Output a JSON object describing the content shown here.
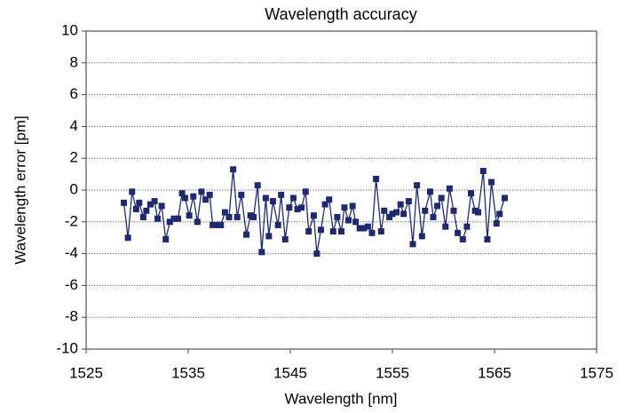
{
  "chart_data": {
    "type": "line",
    "title": "Wavelength accuracy",
    "xlabel": "Wavelength [nm]",
    "ylabel": "Wavelength error [pm]",
    "color": "#1f2a6e",
    "grid": true,
    "markers": "square",
    "x": [
      1528.7,
      1529.1,
      1529.5,
      1529.9,
      1530.2,
      1530.6,
      1530.9,
      1531.3,
      1531.7,
      1532.0,
      1532.4,
      1532.8,
      1533.2,
      1533.6,
      1534.0,
      1534.4,
      1534.7,
      1535.1,
      1535.5,
      1535.9,
      1536.3,
      1536.7,
      1537.1,
      1537.4,
      1537.9,
      1538.2,
      1538.6,
      1539.0,
      1539.4,
      1539.8,
      1540.2,
      1540.7,
      1541.1,
      1541.4,
      1541.8,
      1542.2,
      1542.6,
      1542.9,
      1543.3,
      1543.8,
      1544.1,
      1544.5,
      1544.9,
      1545.3,
      1545.7,
      1546.1,
      1546.5,
      1546.8,
      1547.3,
      1547.6,
      1548.0,
      1548.4,
      1548.8,
      1549.2,
      1549.6,
      1550.0,
      1550.3,
      1550.7,
      1551.1,
      1551.4,
      1551.8,
      1552.2,
      1552.6,
      1553.0,
      1553.4,
      1553.9,
      1554.2,
      1554.7,
      1555.0,
      1555.4,
      1555.8,
      1556.1,
      1556.6,
      1557.0,
      1557.4,
      1557.9,
      1558.2,
      1558.7,
      1559.0,
      1559.4,
      1559.8,
      1560.2,
      1560.6,
      1561.0,
      1561.4,
      1561.9,
      1562.3,
      1562.7,
      1563.1,
      1563.4,
      1563.9,
      1564.3,
      1564.7,
      1565.2,
      1565.5,
      1566.0
    ],
    "values": [
      -0.8,
      -3.0,
      -0.1,
      -1.2,
      -0.8,
      -1.7,
      -1.3,
      -0.9,
      -0.7,
      -1.8,
      -1.0,
      -3.1,
      -2.0,
      -1.8,
      -1.8,
      -0.2,
      -0.5,
      -1.6,
      -0.4,
      -2.0,
      -0.1,
      -0.6,
      -0.3,
      -2.2,
      -2.2,
      -2.2,
      -1.4,
      -1.7,
      1.3,
      -1.7,
      -0.3,
      -2.8,
      -1.6,
      -1.7,
      0.3,
      -3.9,
      -0.5,
      -2.9,
      -0.7,
      -2.2,
      -0.3,
      -3.1,
      -1.1,
      -0.5,
      -1.2,
      -1.1,
      -0.1,
      -2.6,
      -1.6,
      -4.0,
      -2.5,
      -0.9,
      -0.6,
      -2.6,
      -1.7,
      -2.6,
      -1.1,
      -1.9,
      -1.0,
      -2.0,
      -2.4,
      -2.4,
      -2.3,
      -2.7,
      0.7,
      -2.6,
      -1.3,
      -1.7,
      -1.5,
      -1.4,
      -0.9,
      -1.5,
      -0.7,
      -3.4,
      0.3,
      -2.9,
      -1.3,
      -0.1,
      -1.7,
      -1.0,
      -0.5,
      -2.3,
      0.1,
      -1.3,
      -2.7,
      -3.1,
      -2.3,
      -0.2,
      -1.3,
      -1.4,
      1.2,
      -3.1,
      0.5,
      -2.1,
      -1.5,
      -0.5
    ],
    "xlim": [
      1525,
      1575
    ],
    "xticks": [
      1525,
      1535,
      1545,
      1555,
      1565,
      1575
    ],
    "ylim": [
      -10,
      10
    ],
    "yticks": [
      -10,
      -8,
      -6,
      -4,
      -2,
      0,
      2,
      4,
      6,
      8,
      10
    ]
  }
}
